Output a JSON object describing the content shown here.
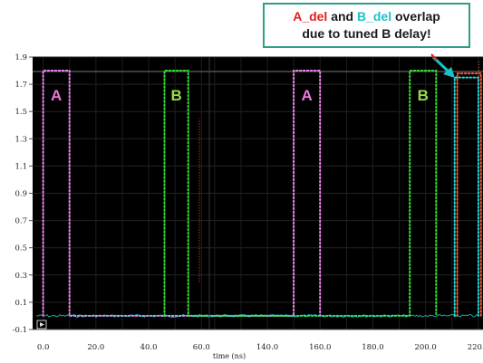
{
  "callout": {
    "a_del": "A_del",
    "and": " and ",
    "b_del": "B_del",
    "overlap": " overlap",
    "line2": "due to tuned B delay!"
  },
  "colors": {
    "signal_a": "#ee82ee",
    "signal_b": "#33dd33",
    "a_del": "#ff5533",
    "b_del": "#22dddd",
    "label_a": "#ee77dd",
    "label_b": "#99dd44",
    "callout_border": "#2e9e86",
    "arrow": "#19c3c8",
    "plot_bg": "#000000"
  },
  "chart_data": {
    "type": "line",
    "xlabel": "time (ns)",
    "ylim": [
      -0.1,
      1.9
    ],
    "y_ticks": [
      "1.9",
      "1.7",
      "1.5",
      "1.3",
      "1.1",
      "0.9",
      "0.7",
      "0.5",
      "0.3",
      "0.1",
      "-0.1"
    ],
    "x_ticks_left": [
      "0.0",
      "20.0",
      "40.0",
      "60.0"
    ],
    "x_ticks_right": [
      "140.0",
      "160.0",
      "180.0",
      "200.0",
      "220.0"
    ],
    "panels": [
      {
        "xlim": [
          -4,
          63
        ]
      },
      {
        "xlim": [
          118,
          226
        ]
      }
    ],
    "series": [
      {
        "values": [
          [
            0,
            0
          ],
          [
            0,
            1.8
          ],
          [
            10,
            1.8
          ],
          [
            10,
            0
          ],
          [
            150,
            0
          ],
          [
            150,
            1.8
          ],
          [
            160,
            1.8
          ],
          [
            160,
            0
          ]
        ]
      },
      {
        "values": [
          [
            46,
            0
          ],
          [
            46,
            1.8
          ],
          [
            55,
            1.8
          ],
          [
            55,
            0
          ],
          [
            194,
            0
          ],
          [
            194,
            1.8
          ],
          [
            204,
            1.8
          ],
          [
            204,
            0
          ]
        ]
      },
      {
        "values": [
          [
            212,
            0
          ],
          [
            212,
            1.78
          ],
          [
            221,
            1.78
          ],
          [
            221,
            0
          ]
        ]
      },
      {
        "values": [
          [
            211,
            0
          ],
          [
            211,
            1.75
          ],
          [
            220,
            1.75
          ],
          [
            220,
            0
          ]
        ]
      }
    ],
    "labels": [
      {
        "text": "A",
        "x": 5,
        "y": 1.62
      },
      {
        "text": "B",
        "x": 50.5,
        "y": 1.62
      },
      {
        "text": "A",
        "x": 155,
        "y": 1.62
      },
      {
        "text": "B",
        "x": 199,
        "y": 1.62
      }
    ]
  }
}
